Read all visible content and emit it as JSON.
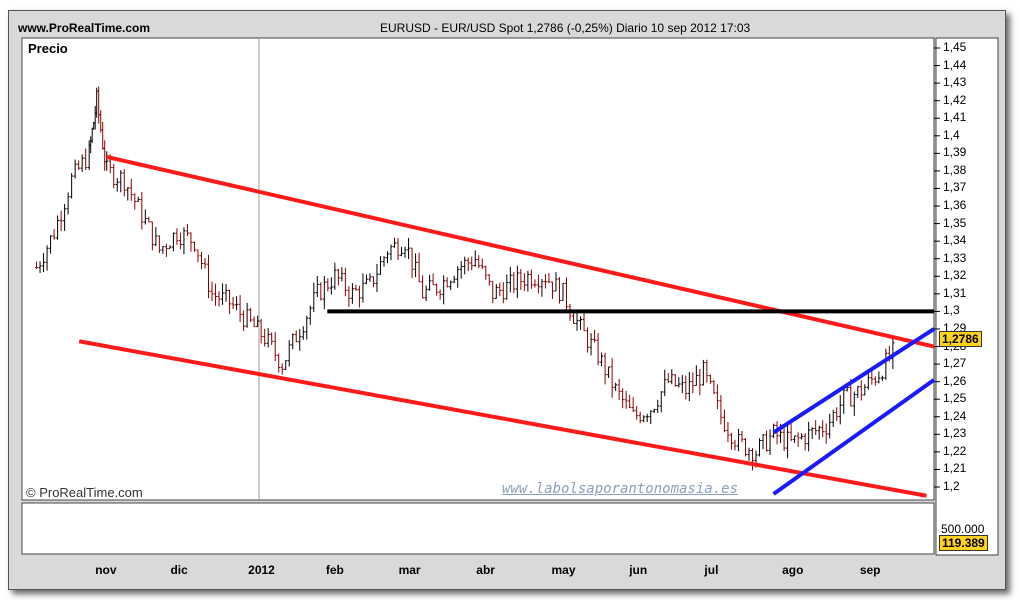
{
  "header": {
    "site": "www.ProRealTime.com",
    "title": "EURUSD - EUR/USD Spot    1,2786 (-0,25%)    Diario  10 sep 2012 17:03",
    "price_label": "Precio",
    "copyright": "© ProRealTime.com",
    "watermark": "www.labolsaporantonomasia.es"
  },
  "badges": {
    "last_price": "1,2786",
    "volume": "119.389",
    "volume_scale": "500.000"
  },
  "colors": {
    "bull_candle": "#000000",
    "bear_candle": "#8b0000",
    "channel_down": "#ff1a1a",
    "channel_up": "#1a1aff",
    "support": "#000000",
    "badge": "#ffd21e"
  },
  "chart_data": {
    "type": "line",
    "title": "EURUSD - EUR/USD Spot",
    "ylabel": "Precio",
    "ylim": [
      1.195,
      1.455
    ],
    "y_ticks": [
      "1,45",
      "1,44",
      "1,43",
      "1,42",
      "1,41",
      "1,4",
      "1,39",
      "1,38",
      "1,37",
      "1,36",
      "1,35",
      "1,34",
      "1,33",
      "1,32",
      "1,31",
      "1,3",
      "1,29",
      "1,28",
      "1,27",
      "1,26",
      "1,25",
      "1,24",
      "1,23",
      "1,22",
      "1,21",
      "1,2"
    ],
    "y_tick_values": [
      1.45,
      1.44,
      1.43,
      1.42,
      1.41,
      1.4,
      1.39,
      1.38,
      1.37,
      1.36,
      1.35,
      1.34,
      1.33,
      1.32,
      1.31,
      1.3,
      1.29,
      1.28,
      1.27,
      1.26,
      1.25,
      1.24,
      1.23,
      1.22,
      1.21,
      1.2
    ],
    "x_ticks": [
      "nov",
      "dic",
      "2012",
      "feb",
      "mar",
      "abr",
      "may",
      "jun",
      "jul",
      "ago",
      "sep"
    ],
    "x_tick_dates": [
      "2011-11-01",
      "2011-12-01",
      "2012-01-01",
      "2012-02-01",
      "2012-03-01",
      "2012-04-01",
      "2012-05-01",
      "2012-06-01",
      "2012-07-01",
      "2012-08-01",
      "2012-09-01"
    ],
    "x_range": [
      "2011-09-28",
      "2012-09-25"
    ],
    "grid": false,
    "series": [
      {
        "x": [
          "2011-10-03",
          "2011-10-10",
          "2011-10-17",
          "2011-10-24",
          "2011-10-27",
          "2011-10-31",
          "2011-11-07",
          "2011-11-14",
          "2011-11-21",
          "2011-11-28",
          "2011-12-05",
          "2011-12-12",
          "2011-12-19",
          "2011-12-26",
          "2012-01-02",
          "2012-01-09",
          "2012-01-16",
          "2012-01-23",
          "2012-01-30",
          "2012-02-06",
          "2012-02-13",
          "2012-02-20",
          "2012-02-27",
          "2012-03-05",
          "2012-03-12",
          "2012-03-19",
          "2012-03-26",
          "2012-04-02",
          "2012-04-09",
          "2012-04-16",
          "2012-04-23",
          "2012-04-30",
          "2012-05-07",
          "2012-05-14",
          "2012-05-21",
          "2012-05-28",
          "2012-06-04",
          "2012-06-11",
          "2012-06-18",
          "2012-06-25",
          "2012-07-02",
          "2012-07-09",
          "2012-07-16",
          "2012-07-23",
          "2012-07-30",
          "2012-08-06",
          "2012-08-13",
          "2012-08-20",
          "2012-08-27",
          "2012-09-03",
          "2012-09-10"
        ],
        "values": [
          1.325,
          1.345,
          1.375,
          1.39,
          1.42,
          1.38,
          1.375,
          1.355,
          1.335,
          1.345,
          1.34,
          1.31,
          1.305,
          1.295,
          1.285,
          1.27,
          1.29,
          1.31,
          1.32,
          1.31,
          1.315,
          1.335,
          1.34,
          1.31,
          1.315,
          1.325,
          1.33,
          1.31,
          1.315,
          1.32,
          1.32,
          1.31,
          1.29,
          1.275,
          1.255,
          1.24,
          1.245,
          1.26,
          1.255,
          1.265,
          1.24,
          1.225,
          1.22,
          1.23,
          1.225,
          1.23,
          1.235,
          1.25,
          1.255,
          1.265,
          1.279
        ]
      }
    ],
    "trendlines": [
      {
        "name": "upper-down",
        "from": [
          "2011-10-31",
          1.388
        ],
        "to": [
          "2012-09-25",
          1.28
        ],
        "color": "#ff1a1a"
      },
      {
        "name": "lower-down",
        "from": [
          "2011-10-20",
          1.283
        ],
        "to": [
          "2012-09-22",
          1.195
        ],
        "color": "#ff1a1a"
      },
      {
        "name": "support",
        "from": [
          "2012-01-27",
          1.3
        ],
        "to": [
          "2012-09-25",
          1.3
        ],
        "color": "#000000"
      },
      {
        "name": "up-channel-upper",
        "from": [
          "2012-07-23",
          1.231
        ],
        "to": [
          "2012-09-25",
          1.29
        ],
        "color": "#1a1aff"
      },
      {
        "name": "up-channel-lower",
        "from": [
          "2012-07-23",
          1.196
        ],
        "to": [
          "2012-09-25",
          1.261
        ],
        "color": "#1a1aff"
      }
    ],
    "volume": {
      "ylim": [
        0,
        500000
      ],
      "last": 119389
    }
  }
}
